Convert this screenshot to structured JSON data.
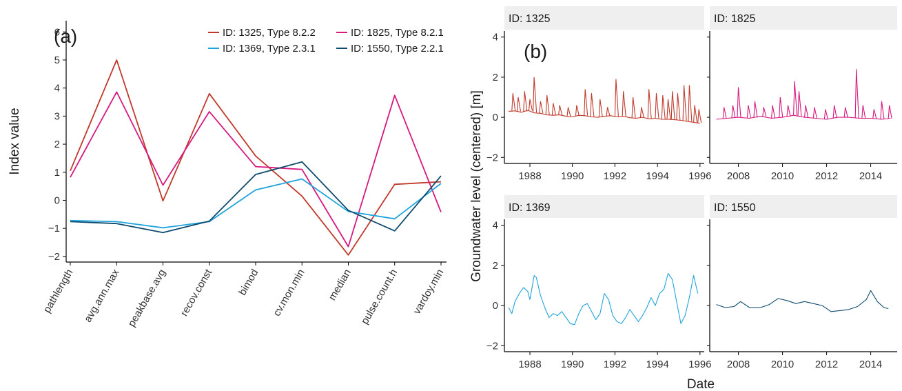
{
  "chart_data": [
    {
      "type": "line",
      "panel_label": "(a)",
      "ylabel": "Index value",
      "ylim": [
        -2.2,
        6.4
      ],
      "yticks": [
        -2,
        -1,
        0,
        1,
        2,
        3,
        4,
        5,
        6
      ],
      "ytick_labels": [
        "−2",
        "−1",
        "0",
        "1",
        "2",
        "3",
        "4",
        "5",
        "6"
      ],
      "categories": [
        "pathlength",
        "avg.ann.max",
        "peakbase.avg",
        "recov.const",
        "bimod",
        "cv.mon.min",
        "median",
        "pulse.count.h",
        "vardoy.min"
      ],
      "legend_position": "top",
      "grid": false,
      "series": [
        {
          "name": "ID: 1325, Type 8.2.2",
          "color": "#c0392b",
          "values": [
            1.05,
            5.0,
            -0.02,
            3.8,
            1.58,
            0.15,
            -1.95,
            0.57,
            0.66
          ]
        },
        {
          "name": "ID: 1825, Type 8.2.1",
          "color": "#d6187f",
          "values": [
            0.82,
            3.86,
            0.54,
            3.16,
            1.2,
            1.1,
            -1.65,
            3.74,
            -0.42
          ]
        },
        {
          "name": "ID: 1369, Type 2.3.1",
          "color": "#1fa3dc",
          "values": [
            -0.72,
            -0.76,
            -0.98,
            -0.76,
            0.37,
            0.76,
            -0.4,
            -0.66,
            0.6
          ]
        },
        {
          "name": "ID: 1550, Type 2.2.1",
          "color": "#0e4a6e",
          "values": [
            -0.76,
            -0.83,
            -1.15,
            -0.74,
            0.92,
            1.37,
            -0.36,
            -1.09,
            0.87
          ]
        }
      ]
    },
    {
      "type": "line",
      "panel_label": "(b)",
      "ylabel": "Groundwater level (centered) [m]",
      "xlabel": "Date",
      "ylim": [
        -2.3,
        4.3
      ],
      "yticks": [
        -2,
        0,
        2,
        4
      ],
      "ytick_labels": [
        "−2",
        "0",
        "2",
        "4"
      ],
      "grid": false,
      "facets": [
        {
          "strip": "ID: 1325",
          "color": "#c0392b",
          "row": 0,
          "col": 0,
          "xlim": [
            1986.8,
            1996.2
          ],
          "xticks": [
            1988,
            1990,
            1992,
            1994,
            1996
          ],
          "xtick_labels": [
            "1988",
            "1990",
            "1992",
            "1994",
            "1996"
          ],
          "x": [
            1987.0,
            1987.3,
            1987.6,
            1987.9,
            1988.2,
            1988.5,
            1988.8,
            1989.1,
            1989.4,
            1989.7,
            1990.0,
            1990.3,
            1990.6,
            1990.9,
            1991.2,
            1991.5,
            1991.8,
            1992.1,
            1992.4,
            1992.7,
            1993.0,
            1993.3,
            1993.6,
            1993.9,
            1994.2,
            1994.5,
            1994.8,
            1995.1,
            1995.4,
            1995.7,
            1996.0
          ],
          "y": [
            0.3,
            0.32,
            0.25,
            0.35,
            0.22,
            0.2,
            0.12,
            0.1,
            0.12,
            0.05,
            0.02,
            0.1,
            0.08,
            0.02,
            0.0,
            0.05,
            0.08,
            0.02,
            0.05,
            -0.02,
            -0.05,
            0.0,
            -0.08,
            -0.05,
            -0.1,
            -0.1,
            -0.12,
            -0.15,
            -0.2,
            -0.25,
            -0.3
          ],
          "spikes": [
            {
              "x": 1987.15,
              "y": 1.2
            },
            {
              "x": 1987.4,
              "y": 1.0
            },
            {
              "x": 1987.7,
              "y": 1.3
            },
            {
              "x": 1987.95,
              "y": 0.9
            },
            {
              "x": 1988.15,
              "y": 2.0
            },
            {
              "x": 1988.45,
              "y": 0.8
            },
            {
              "x": 1988.75,
              "y": 1.1
            },
            {
              "x": 1989.05,
              "y": 0.7
            },
            {
              "x": 1989.35,
              "y": 0.6
            },
            {
              "x": 1989.75,
              "y": 0.5
            },
            {
              "x": 1990.15,
              "y": 0.6
            },
            {
              "x": 1990.55,
              "y": 1.4
            },
            {
              "x": 1990.85,
              "y": 1.2
            },
            {
              "x": 1991.25,
              "y": 0.9
            },
            {
              "x": 1991.6,
              "y": 0.5
            },
            {
              "x": 1992.0,
              "y": 1.9
            },
            {
              "x": 1992.35,
              "y": 1.3
            },
            {
              "x": 1992.8,
              "y": 1.0
            },
            {
              "x": 1993.2,
              "y": 0.5
            },
            {
              "x": 1993.55,
              "y": 1.4
            },
            {
              "x": 1993.9,
              "y": 1.2
            },
            {
              "x": 1994.2,
              "y": 1.1
            },
            {
              "x": 1994.45,
              "y": 0.9
            },
            {
              "x": 1994.65,
              "y": 1.3
            },
            {
              "x": 1994.9,
              "y": 1.2
            },
            {
              "x": 1995.2,
              "y": 1.6
            },
            {
              "x": 1995.45,
              "y": 1.6
            },
            {
              "x": 1995.7,
              "y": 0.6
            },
            {
              "x": 1995.9,
              "y": 0.4
            }
          ]
        },
        {
          "strip": "ID: 1825",
          "color": "#d6187f",
          "row": 0,
          "col": 1,
          "xlim": [
            2006.7,
            2015.2
          ],
          "xticks": [
            2008,
            2010,
            2012,
            2014
          ],
          "xtick_labels": [
            "2008",
            "2010",
            "2012",
            "2014"
          ],
          "x": [
            2007.0,
            2007.5,
            2008.0,
            2008.5,
            2009.0,
            2009.5,
            2010.0,
            2010.5,
            2011.0,
            2011.5,
            2012.0,
            2012.5,
            2013.0,
            2013.5,
            2014.0,
            2014.5,
            2014.9
          ],
          "y": [
            -0.1,
            -0.05,
            0.0,
            -0.05,
            0.05,
            -0.05,
            0.0,
            0.1,
            0.0,
            -0.05,
            -0.1,
            0.0,
            0.0,
            -0.05,
            -0.05,
            -0.1,
            -0.05
          ],
          "spikes": [
            {
              "x": 2007.3,
              "y": 0.5
            },
            {
              "x": 2007.7,
              "y": 0.6
            },
            {
              "x": 2007.95,
              "y": 1.5
            },
            {
              "x": 2008.4,
              "y": 0.6
            },
            {
              "x": 2008.7,
              "y": 0.8
            },
            {
              "x": 2009.1,
              "y": 0.5
            },
            {
              "x": 2009.5,
              "y": 0.6
            },
            {
              "x": 2009.85,
              "y": 1.0
            },
            {
              "x": 2010.2,
              "y": 0.6
            },
            {
              "x": 2010.5,
              "y": 1.8
            },
            {
              "x": 2010.7,
              "y": 1.3
            },
            {
              "x": 2011.0,
              "y": 0.6
            },
            {
              "x": 2011.4,
              "y": 0.5
            },
            {
              "x": 2011.9,
              "y": 0.4
            },
            {
              "x": 2012.3,
              "y": 0.6
            },
            {
              "x": 2012.8,
              "y": 0.5
            },
            {
              "x": 2013.3,
              "y": 2.4
            },
            {
              "x": 2013.6,
              "y": 0.6
            },
            {
              "x": 2014.1,
              "y": 0.4
            },
            {
              "x": 2014.45,
              "y": 0.8
            },
            {
              "x": 2014.8,
              "y": 0.6
            }
          ]
        },
        {
          "strip": "ID: 1369",
          "color": "#1fa3dc",
          "row": 1,
          "col": 0,
          "xlim": [
            1986.8,
            1996.2
          ],
          "xticks": [
            1988,
            1990,
            1992,
            1994,
            1996
          ],
          "xtick_labels": [
            "1988",
            "1990",
            "1992",
            "1994",
            "1996"
          ],
          "x": [
            1987.0,
            1987.15,
            1987.3,
            1987.5,
            1987.7,
            1987.9,
            1988.0,
            1988.2,
            1988.3,
            1988.5,
            1988.7,
            1988.9,
            1989.1,
            1989.3,
            1989.5,
            1989.7,
            1989.9,
            1990.1,
            1990.3,
            1990.5,
            1990.7,
            1990.9,
            1991.1,
            1991.3,
            1991.5,
            1991.7,
            1991.9,
            1992.1,
            1992.3,
            1992.5,
            1992.7,
            1992.9,
            1993.1,
            1993.3,
            1993.5,
            1993.7,
            1993.9,
            1994.1,
            1994.3,
            1994.5,
            1994.7,
            1994.9,
            1995.1,
            1995.3,
            1995.5,
            1995.7,
            1995.9
          ],
          "y": [
            -0.1,
            -0.4,
            0.2,
            0.6,
            0.9,
            0.7,
            0.3,
            1.5,
            1.4,
            0.5,
            -0.1,
            -0.6,
            -0.4,
            -0.5,
            -0.3,
            -0.6,
            -0.9,
            -0.95,
            -0.4,
            0.0,
            0.1,
            -0.3,
            -0.7,
            -0.4,
            0.6,
            0.3,
            -0.5,
            -0.8,
            -0.9,
            -0.6,
            -0.2,
            -0.5,
            -0.8,
            -0.5,
            -0.1,
            0.4,
            0.0,
            0.6,
            0.8,
            1.6,
            1.3,
            0.2,
            -0.9,
            -0.5,
            0.4,
            1.5,
            0.6
          ]
        },
        {
          "strip": "ID: 1550",
          "color": "#0e4a6e",
          "row": 1,
          "col": 1,
          "xlim": [
            2006.7,
            2015.2
          ],
          "xticks": [
            2008,
            2010,
            2012,
            2014
          ],
          "xtick_labels": [
            "2008",
            "2010",
            "2012",
            "2014"
          ],
          "x": [
            2007.0,
            2007.4,
            2007.8,
            2008.1,
            2008.5,
            2009.0,
            2009.4,
            2009.8,
            2010.2,
            2010.6,
            2011.0,
            2011.4,
            2011.8,
            2012.2,
            2012.6,
            2013.0,
            2013.4,
            2013.8,
            2014.0,
            2014.3,
            2014.6,
            2014.8
          ],
          "y": [
            0.05,
            -0.1,
            -0.05,
            0.2,
            -0.1,
            -0.1,
            0.05,
            0.35,
            0.25,
            0.1,
            0.2,
            0.1,
            0.0,
            -0.3,
            -0.25,
            -0.2,
            -0.05,
            0.3,
            0.75,
            0.2,
            -0.1,
            -0.15
          ]
        }
      ]
    }
  ]
}
